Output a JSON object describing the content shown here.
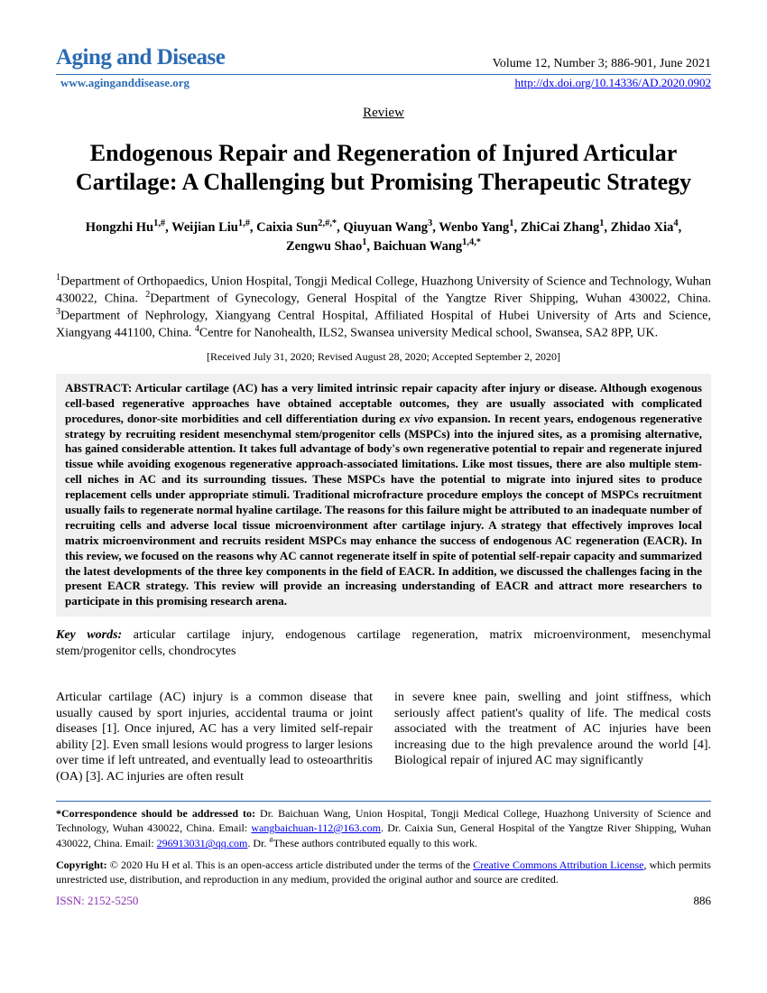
{
  "header": {
    "journal_name": "Aging and Disease",
    "issue_info": "Volume 12, Number 3; 886-901, June 2021",
    "website": "www.aginganddisease.org",
    "doi": "http://dx.doi.org/10.14336/AD.2020.0902"
  },
  "article_type": "Review",
  "title": "Endogenous Repair and Regeneration of Injured Articular Cartilage: A Challenging but Promising Therapeutic Strategy",
  "authors_html": "Hongzhi Hu<sup>1,#</sup>, Weijian Liu<sup>1,#</sup>, Caixia Sun<sup>2,#,*</sup>, Qiuyuan Wang<sup>3</sup>, Wenbo Yang<sup>1</sup>, ZhiCai Zhang<sup>1</sup>, Zhidao Xia<sup>4</sup>, Zengwu Shao<sup>1</sup>, Baichuan Wang<sup>1,4,*</sup>",
  "affiliations_html": "<sup>1</sup>Department of Orthopaedics, Union Hospital, Tongji Medical College, Huazhong University of Science and Technology, Wuhan 430022, China. <sup>2</sup>Department of Gynecology, General Hospital of the Yangtze River Shipping, Wuhan 430022, China. <sup>3</sup>Department of Nephrology, Xiangyang Central Hospital, Affiliated Hospital of Hubei University of Arts and Science, Xiangyang 441100, China. <sup>4</sup>Centre for Nanohealth, ILS2, Swansea university Medical school, Swansea, SA2 8PP, UK.",
  "dates": "[Received July 31, 2020; Revised August 28, 2020; Accepted September 2, 2020]",
  "abstract": {
    "label": "ABSTRACT: ",
    "text_html": "Articular cartilage (AC) has a very limited intrinsic repair capacity after injury or disease. Although exogenous cell-based regenerative approaches have obtained acceptable outcomes, they are usually associated with complicated procedures, donor-site morbidities and cell differentiation during <em>ex vivo</em> expansion. In recent years, endogenous regenerative strategy by recruiting resident mesenchymal stem/progenitor cells (MSPCs) into the injured sites, as a promising alternative, has gained considerable attention. It takes full advantage of body's own regenerative potential to repair and regenerate injured tissue while avoiding exogenous regenerative approach-associated limitations. Like most tissues, there are also multiple stem-cell niches in AC and its surrounding tissues. These MSPCs have the potential to migrate into injured sites to produce replacement cells under appropriate stimuli. Traditional microfracture procedure employs the concept of MSPCs recruitment usually fails to regenerate normal hyaline cartilage. The reasons for this failure might be attributed to an inadequate number of recruiting cells and adverse local tissue microenvironment after cartilage injury. A strategy that effectively improves local matrix microenvironment and recruits resident MSPCs may enhance the success of endogenous AC regeneration (EACR). In this review, we focused on the reasons why AC cannot regenerate itself in spite of potential self-repair capacity and summarized the latest developments of the three key components in the field of EACR. In addition, we discussed the challenges facing in the present EACR strategy. This review will provide an increasing understanding of EACR and attract more researchers to participate in this promising research arena."
  },
  "keywords": {
    "label": "Key words:",
    "text": " articular cartilage injury, endogenous cartilage regeneration, matrix microenvironment, mesenchymal stem/progenitor cells, chondrocytes"
  },
  "body": {
    "col1": "Articular cartilage (AC) injury is a common disease that usually caused by sport injuries, accidental trauma or joint diseases [1]. Once injured, AC has a very limited self-repair ability [2]. Even small lesions would progress to larger lesions over time if left untreated, and eventually lead to osteoarthritis (OA) [3]. AC injuries are often result",
    "col2": "in severe knee pain, swelling and joint stiffness, which seriously affect patient's quality of life. The medical costs associated with the treatment of AC injuries have been increasing due to the high prevalence around the world [4]. Biological repair of injured AC may significantly"
  },
  "footer": {
    "correspondence_html": "<b>*Correspondence should be addressed to:</b> Dr. Baichuan Wang, Union Hospital, Tongji Medical College, Huazhong University of Science and Technology, Wuhan 430022, China. Email: <span class=\"link\">wangbaichuan-112@163.com</span>. Dr. Caixia Sun, General Hospital of the Yangtze River Shipping, Wuhan 430022, China. Email: <span class=\"link\">296913031@qq.com</span>. Dr. <sup>#</sup>These authors contributed equally to this work.",
    "copyright_html": "<b>Copyright:</b> © 2020 Hu H et al. This is an open-access article distributed under the terms of the <span class=\"link\">Creative Commons Attribution License</span>, which permits unrestricted use, distribution, and reproduction in any medium, provided the original author and source are credited.",
    "issn": "ISSN: 2152-5250",
    "page": "886"
  },
  "colors": {
    "brand_blue": "#2a6bb3",
    "link_blue": "#0000ee",
    "issn_purple": "#8a2fb3",
    "abstract_bg": "#f0f0f0"
  }
}
